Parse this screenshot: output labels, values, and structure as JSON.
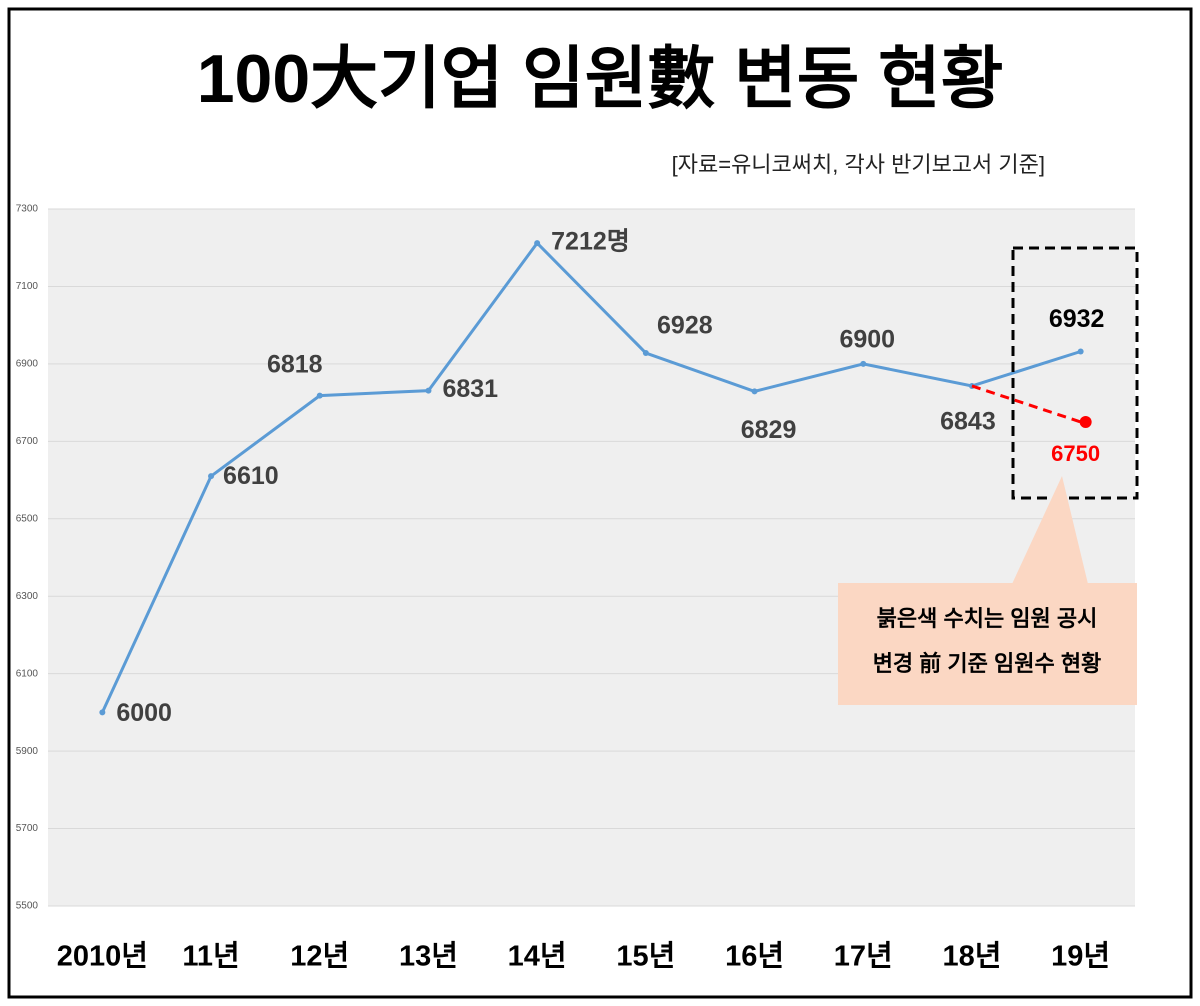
{
  "chart_data": {
    "type": "line",
    "title": "100大기업 임원數 변동 현황",
    "subtitle": "[자료=유니코써치, 각사 반기보고서 기준]",
    "annotation": [
      "붉은색 수치는 임원 공시",
      "변경 前 기준 임원수 현황"
    ],
    "categories": [
      "2010년",
      "11년",
      "12년",
      "13년",
      "14년",
      "15년",
      "16년",
      "17년",
      "18년",
      "19년"
    ],
    "series": [
      {
        "color": "#5b9bd5",
        "values": [
          6000,
          6610,
          6818,
          6831,
          7212,
          6928,
          6829,
          6900,
          6843,
          6932
        ],
        "value_labels": [
          "6000",
          "6610",
          "6818",
          "6831",
          "7212명",
          "6928",
          "6829",
          "6900",
          "6843",
          "6932"
        ]
      },
      {
        "color": "#ff0000",
        "line_style": "dashed",
        "values": [
          null,
          null,
          null,
          null,
          null,
          null,
          null,
          null,
          6843,
          6750
        ],
        "value_labels": [
          null,
          null,
          null,
          null,
          null,
          null,
          null,
          null,
          null,
          "6750"
        ]
      }
    ],
    "ylim": [
      5500,
      7300
    ],
    "yticks": [
      5500,
      5700,
      5900,
      6100,
      6300,
      6500,
      6700,
      6900,
      7100,
      7300
    ],
    "grid": true
  }
}
